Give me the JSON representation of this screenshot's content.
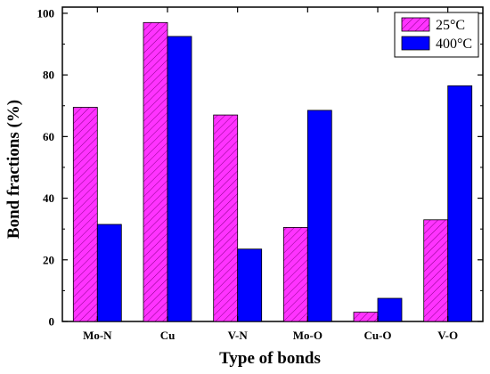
{
  "chart_data": {
    "type": "bar",
    "title": "",
    "xlabel": "Type of bonds",
    "ylabel": "Bond fractions (%)",
    "categories": [
      "Mo-N",
      "Cu",
      "V-N",
      "Mo-O",
      "Cu-O",
      "V-O"
    ],
    "ylim": [
      0,
      102
    ],
    "yticks": [
      "0",
      "20",
      "40",
      "60",
      "80",
      "100"
    ],
    "grid": false,
    "legend_position": "top-right",
    "series": [
      {
        "name": "25°C",
        "values": [
          69.5,
          97,
          67,
          30.5,
          3,
          33
        ],
        "color": "#ff33ff",
        "pattern": "diagonal-hatch"
      },
      {
        "name": "400°C",
        "values": [
          31.5,
          92.5,
          23.5,
          68.5,
          7.5,
          76.5
        ],
        "color": "#0000ff",
        "pattern": "solid"
      }
    ]
  },
  "colors": {
    "axis": "#000000",
    "hatch": "#8a008a"
  }
}
